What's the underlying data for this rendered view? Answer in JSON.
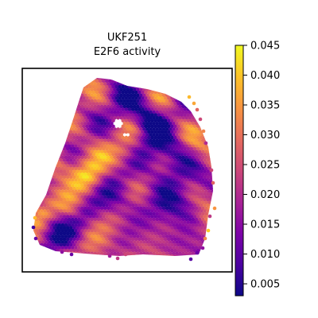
{
  "chart_data": {
    "type": "heatmap",
    "title_line1": "UKF251",
    "title_line2": "E2F6 activity",
    "colormap": "plasma",
    "colorbar": {
      "min": 0.003,
      "max": 0.045,
      "ticks": [
        "0.005",
        "0.010",
        "0.015",
        "0.020",
        "0.025",
        "0.030",
        "0.035",
        "0.040",
        "0.045"
      ],
      "tick_values": [
        0.005,
        0.01,
        0.015,
        0.02,
        0.025,
        0.03,
        0.035,
        0.04,
        0.045
      ]
    },
    "grid": false,
    "axes_ticks": false
  }
}
